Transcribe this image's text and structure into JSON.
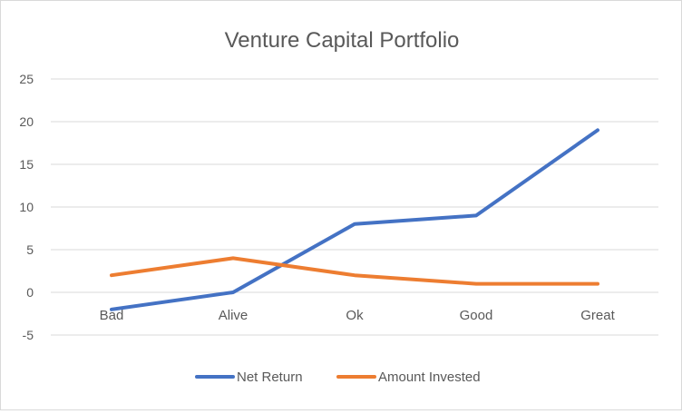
{
  "chart_data": {
    "type": "line",
    "title": "Venture Capital Portfolio",
    "categories": [
      "Bad",
      "Alive",
      "Ok",
      "Good",
      "Great"
    ],
    "series": [
      {
        "name": "Net Return",
        "values": [
          -2,
          0,
          8,
          9,
          19
        ],
        "color": "#4472c4"
      },
      {
        "name": "Amount Invested",
        "values": [
          2,
          4,
          2,
          1,
          1
        ],
        "color": "#ed7d31"
      }
    ],
    "xlabel": "",
    "ylabel": "",
    "ylim": [
      -5,
      25
    ],
    "yticks": [
      -5,
      0,
      5,
      10,
      15,
      20,
      25
    ],
    "grid": true,
    "legend_position": "bottom",
    "gridline_color": "#d9d9d9",
    "text_color": "#595959"
  }
}
